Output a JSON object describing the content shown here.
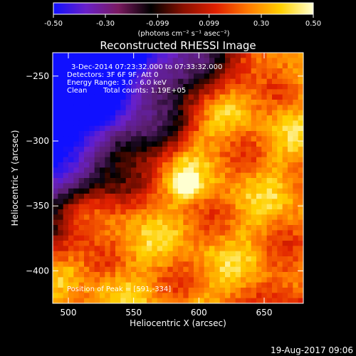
{
  "colorbar": {
    "ticks": [
      "-0.50",
      "-0.30",
      "-0.099",
      "0.099",
      "0.30",
      "0.50"
    ],
    "units": "(photons cm⁻² s⁻¹ asec⁻²)",
    "colors": [
      "#1010ff",
      "#6a20c8",
      "#7a1a60",
      "#000000",
      "#8a1000",
      "#e02000",
      "#ff7a00",
      "#ffd000",
      "#ffffd0"
    ]
  },
  "title": "Reconstructed RHESSI Image",
  "info": {
    "time_range": "3-Dec-2014 07:23:32.000 to 07:33:32.000",
    "detectors": "Detectors: 3F 6F 9F, Att 0",
    "energy": "Energy Range: 3.0 - 6.0 keV",
    "clean": "Clean",
    "counts": "Total counts: 1.19E+05",
    "peak": "Position of Peak = [591,-334]"
  },
  "footer_date": "19-Aug-2017 09:06",
  "chart_data": {
    "type": "heatmap",
    "title": "Reconstructed RHESSI Image",
    "xlabel": "Heliocentric X (arcsec)",
    "ylabel": "Heliocentric Y (arcsec)",
    "xlim": [
      488,
      680
    ],
    "ylim": [
      -425,
      -232
    ],
    "x_ticks": [
      500,
      550,
      600,
      650
    ],
    "y_ticks": [
      -250,
      -300,
      -350,
      -400
    ],
    "color_scale": [
      -0.5,
      0.5
    ],
    "peak": {
      "x": 591,
      "y": -334
    }
  }
}
